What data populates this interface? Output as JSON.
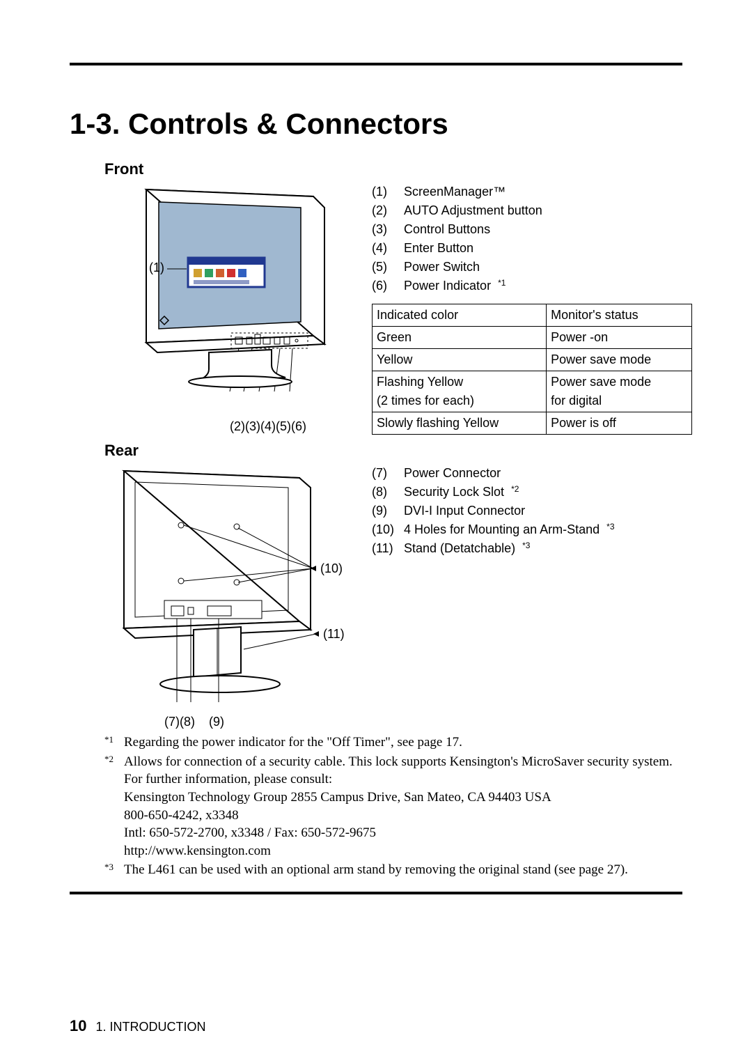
{
  "section": {
    "number": "1-3.",
    "title": "Controls & Connectors"
  },
  "front": {
    "heading": "Front",
    "items": [
      {
        "n": "(1)",
        "label": "ScreenManager™"
      },
      {
        "n": "(2)",
        "label": "AUTO Adjustment button"
      },
      {
        "n": "(3)",
        "label": "Control Buttons"
      },
      {
        "n": "(4)",
        "label": "Enter Button"
      },
      {
        "n": "(5)",
        "label": "Power Switch"
      },
      {
        "n": "(6)",
        "label": "Power Indicator",
        "sup": "*1"
      }
    ],
    "status_table": {
      "headers": [
        "Indicated color",
        "Monitor's status"
      ],
      "rows": [
        [
          "Green",
          "Power -on"
        ],
        [
          "Yellow",
          "Power save mode"
        ],
        [
          "Flashing Yellow\n(2 times for each)",
          "Power save mode\nfor digital"
        ],
        [
          "Slowly flashing Yellow",
          "Power is off"
        ]
      ],
      "border_color": "#000000",
      "fontsize": 18
    },
    "figure": {
      "callout_1": "(1)",
      "bottom_callouts": "(2)(3)(4)(5)(6)"
    }
  },
  "rear": {
    "heading": "Rear",
    "items": [
      {
        "n": "(7)",
        "label": "Power Connector"
      },
      {
        "n": "(8)",
        "label": "Security Lock Slot",
        "sup": "*2"
      },
      {
        "n": "(9)",
        "label": "DVI-I Input Connector"
      },
      {
        "n": "(10)",
        "label": "4 Holes for Mounting an Arm-Stand",
        "sup": "*3"
      },
      {
        "n": "(11)",
        "label": "Stand (Detatchable)",
        "sup": "*3"
      }
    ],
    "figure": {
      "callout_10": "(10)",
      "callout_11": "(11)",
      "bottom_callouts": "(7)(8)    (9)"
    }
  },
  "footnotes": {
    "fn1": {
      "marker": "*1",
      "text": "Regarding the power indicator for the \"Off Timer\", see page 17."
    },
    "fn2": {
      "marker": "*2",
      "line1": "Allows for connection of a security cable.  This lock supports Kensington's MicroSaver security system.  For further information, please consult:",
      "line2": "Kensington Technology Group 2855 Campus Drive, San Mateo, CA 94403  USA",
      "line3": "800-650-4242, x3348",
      "line4": "Intl:  650-572-2700, x3348 / Fax:  650-572-9675",
      "line5": "http://www.kensington.com"
    },
    "fn3": {
      "marker": "*3",
      "text": "The L461 can be used with an optional arm stand by removing the original stand (see page 27)."
    }
  },
  "footer": {
    "page_number": "10",
    "chapter": "1. INTRODUCTION"
  },
  "colors": {
    "rule": "#000000",
    "text": "#000000",
    "screen_bg": "#a0b8d0",
    "menu_bg": "#203890",
    "icon1": "#d0a030",
    "icon2": "#30a060",
    "icon3": "#d06030",
    "icon4": "#d03030",
    "icon5": "#3060c0"
  }
}
